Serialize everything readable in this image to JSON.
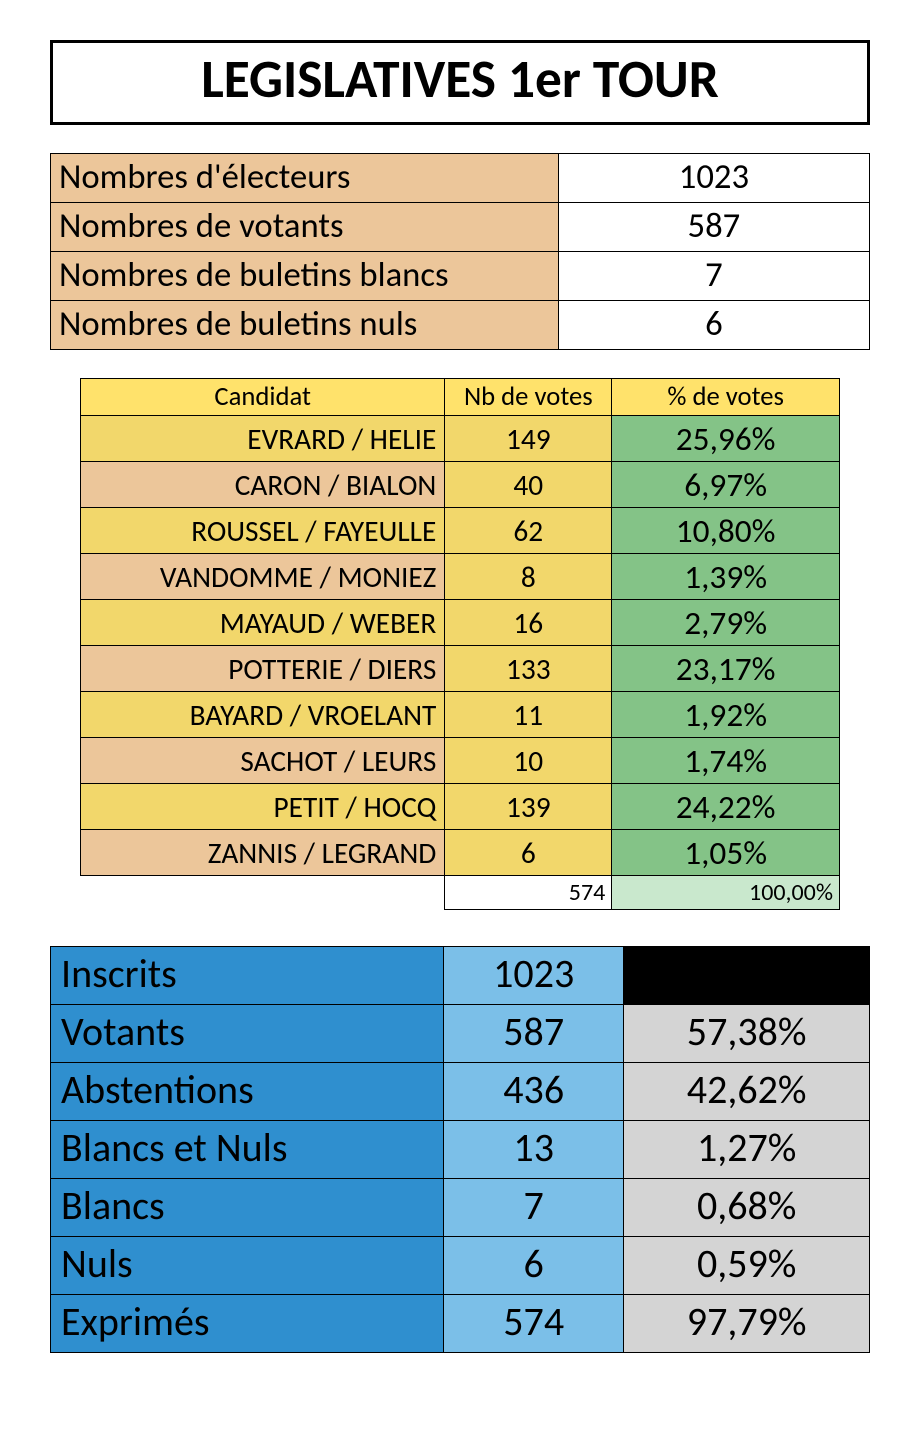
{
  "title": {
    "text": "LEGISLATIVES 1er TOUR",
    "font_size_pt": 40,
    "font_weight": 700,
    "border_color": "#000000"
  },
  "colors": {
    "peach": "#ecc69a",
    "yellow_header": "#ffe26b",
    "yellow_row": "#f2d76b",
    "green_pct": "#84c387",
    "green_total": "#c9e8cd",
    "blue_label": "#2f8fcf",
    "blue_value": "#7bbfe8",
    "grey_pct": "#d4d4d4",
    "black_cell": "#000000",
    "white": "#ffffff",
    "border": "#000000",
    "text": "#000000"
  },
  "summary": {
    "type": "table",
    "font_size_pt": 26,
    "label_bg": "#ecc69a",
    "value_bg": "#ffffff",
    "col_widths_pct": [
      62,
      38
    ],
    "rows": [
      {
        "label": "Nombres d'électeurs",
        "value": "1023"
      },
      {
        "label": "Nombres de votants",
        "value": "587"
      },
      {
        "label": "Nombres de buletins blancs",
        "value": "7"
      },
      {
        "label": "Nombres de buletins nuls",
        "value": "6"
      }
    ]
  },
  "candidates": {
    "type": "table",
    "header_font_size_pt": 20,
    "row_font_size_pt": 22,
    "pct_font_size_pt": 25,
    "col_widths_pct": [
      48,
      22,
      30
    ],
    "header": {
      "bg": "#ffe26b",
      "labels": {
        "name": "Candidat",
        "votes": "Nb de votes",
        "pct": "% de votes"
      }
    },
    "row_colors": {
      "name_bg_odd": "#f2d76b",
      "name_bg_even": "#ecc69a",
      "votes_bg": "#f2d76b",
      "pct_bg": "#84c387"
    },
    "rows": [
      {
        "name": "EVRARD / HELIE",
        "votes": "149",
        "pct": "25,96%"
      },
      {
        "name": "CARON / BIALON",
        "votes": "40",
        "pct": "6,97%"
      },
      {
        "name": "ROUSSEL / FAYEULLE",
        "votes": "62",
        "pct": "10,80%"
      },
      {
        "name": "VANDOMME / MONIEZ",
        "votes": "8",
        "pct": "1,39%"
      },
      {
        "name": "MAYAUD / WEBER",
        "votes": "16",
        "pct": "2,79%"
      },
      {
        "name": "POTTERIE / DIERS",
        "votes": "133",
        "pct": "23,17%"
      },
      {
        "name": "BAYARD / VROELANT",
        "votes": "11",
        "pct": "1,92%"
      },
      {
        "name": "SACHOT / LEURS",
        "votes": "10",
        "pct": "1,74%"
      },
      {
        "name": "PETIT / HOCQ",
        "votes": "139",
        "pct": "24,22%"
      },
      {
        "name": "ZANNIS / LEGRAND",
        "votes": "6",
        "pct": "1,05%"
      }
    ],
    "total": {
      "votes": "574",
      "pct": "100,00%",
      "votes_bg": "#ffffff",
      "pct_bg": "#c9e8cd",
      "font_size_pt": 18
    }
  },
  "stats": {
    "type": "table",
    "font_size_pt": 30,
    "col_widths_pct": [
      48,
      22,
      30
    ],
    "label_bg": "#2f8fcf",
    "value_bg": "#7bbfe8",
    "pct_bg": "#d4d4d4",
    "black_bg": "#000000",
    "rows": [
      {
        "label": "Inscrits",
        "value": "1023",
        "pct": null
      },
      {
        "label": "Votants",
        "value": "587",
        "pct": "57,38%"
      },
      {
        "label": "Abstentions",
        "value": "436",
        "pct": "42,62%"
      },
      {
        "label": "Blancs et Nuls",
        "value": "13",
        "pct": "1,27%"
      },
      {
        "label": "Blancs",
        "value": "7",
        "pct": "0,68%"
      },
      {
        "label": "Nuls",
        "value": "6",
        "pct": "0,59%"
      },
      {
        "label": "Exprimés",
        "value": "574",
        "pct": "97,79%"
      }
    ]
  }
}
